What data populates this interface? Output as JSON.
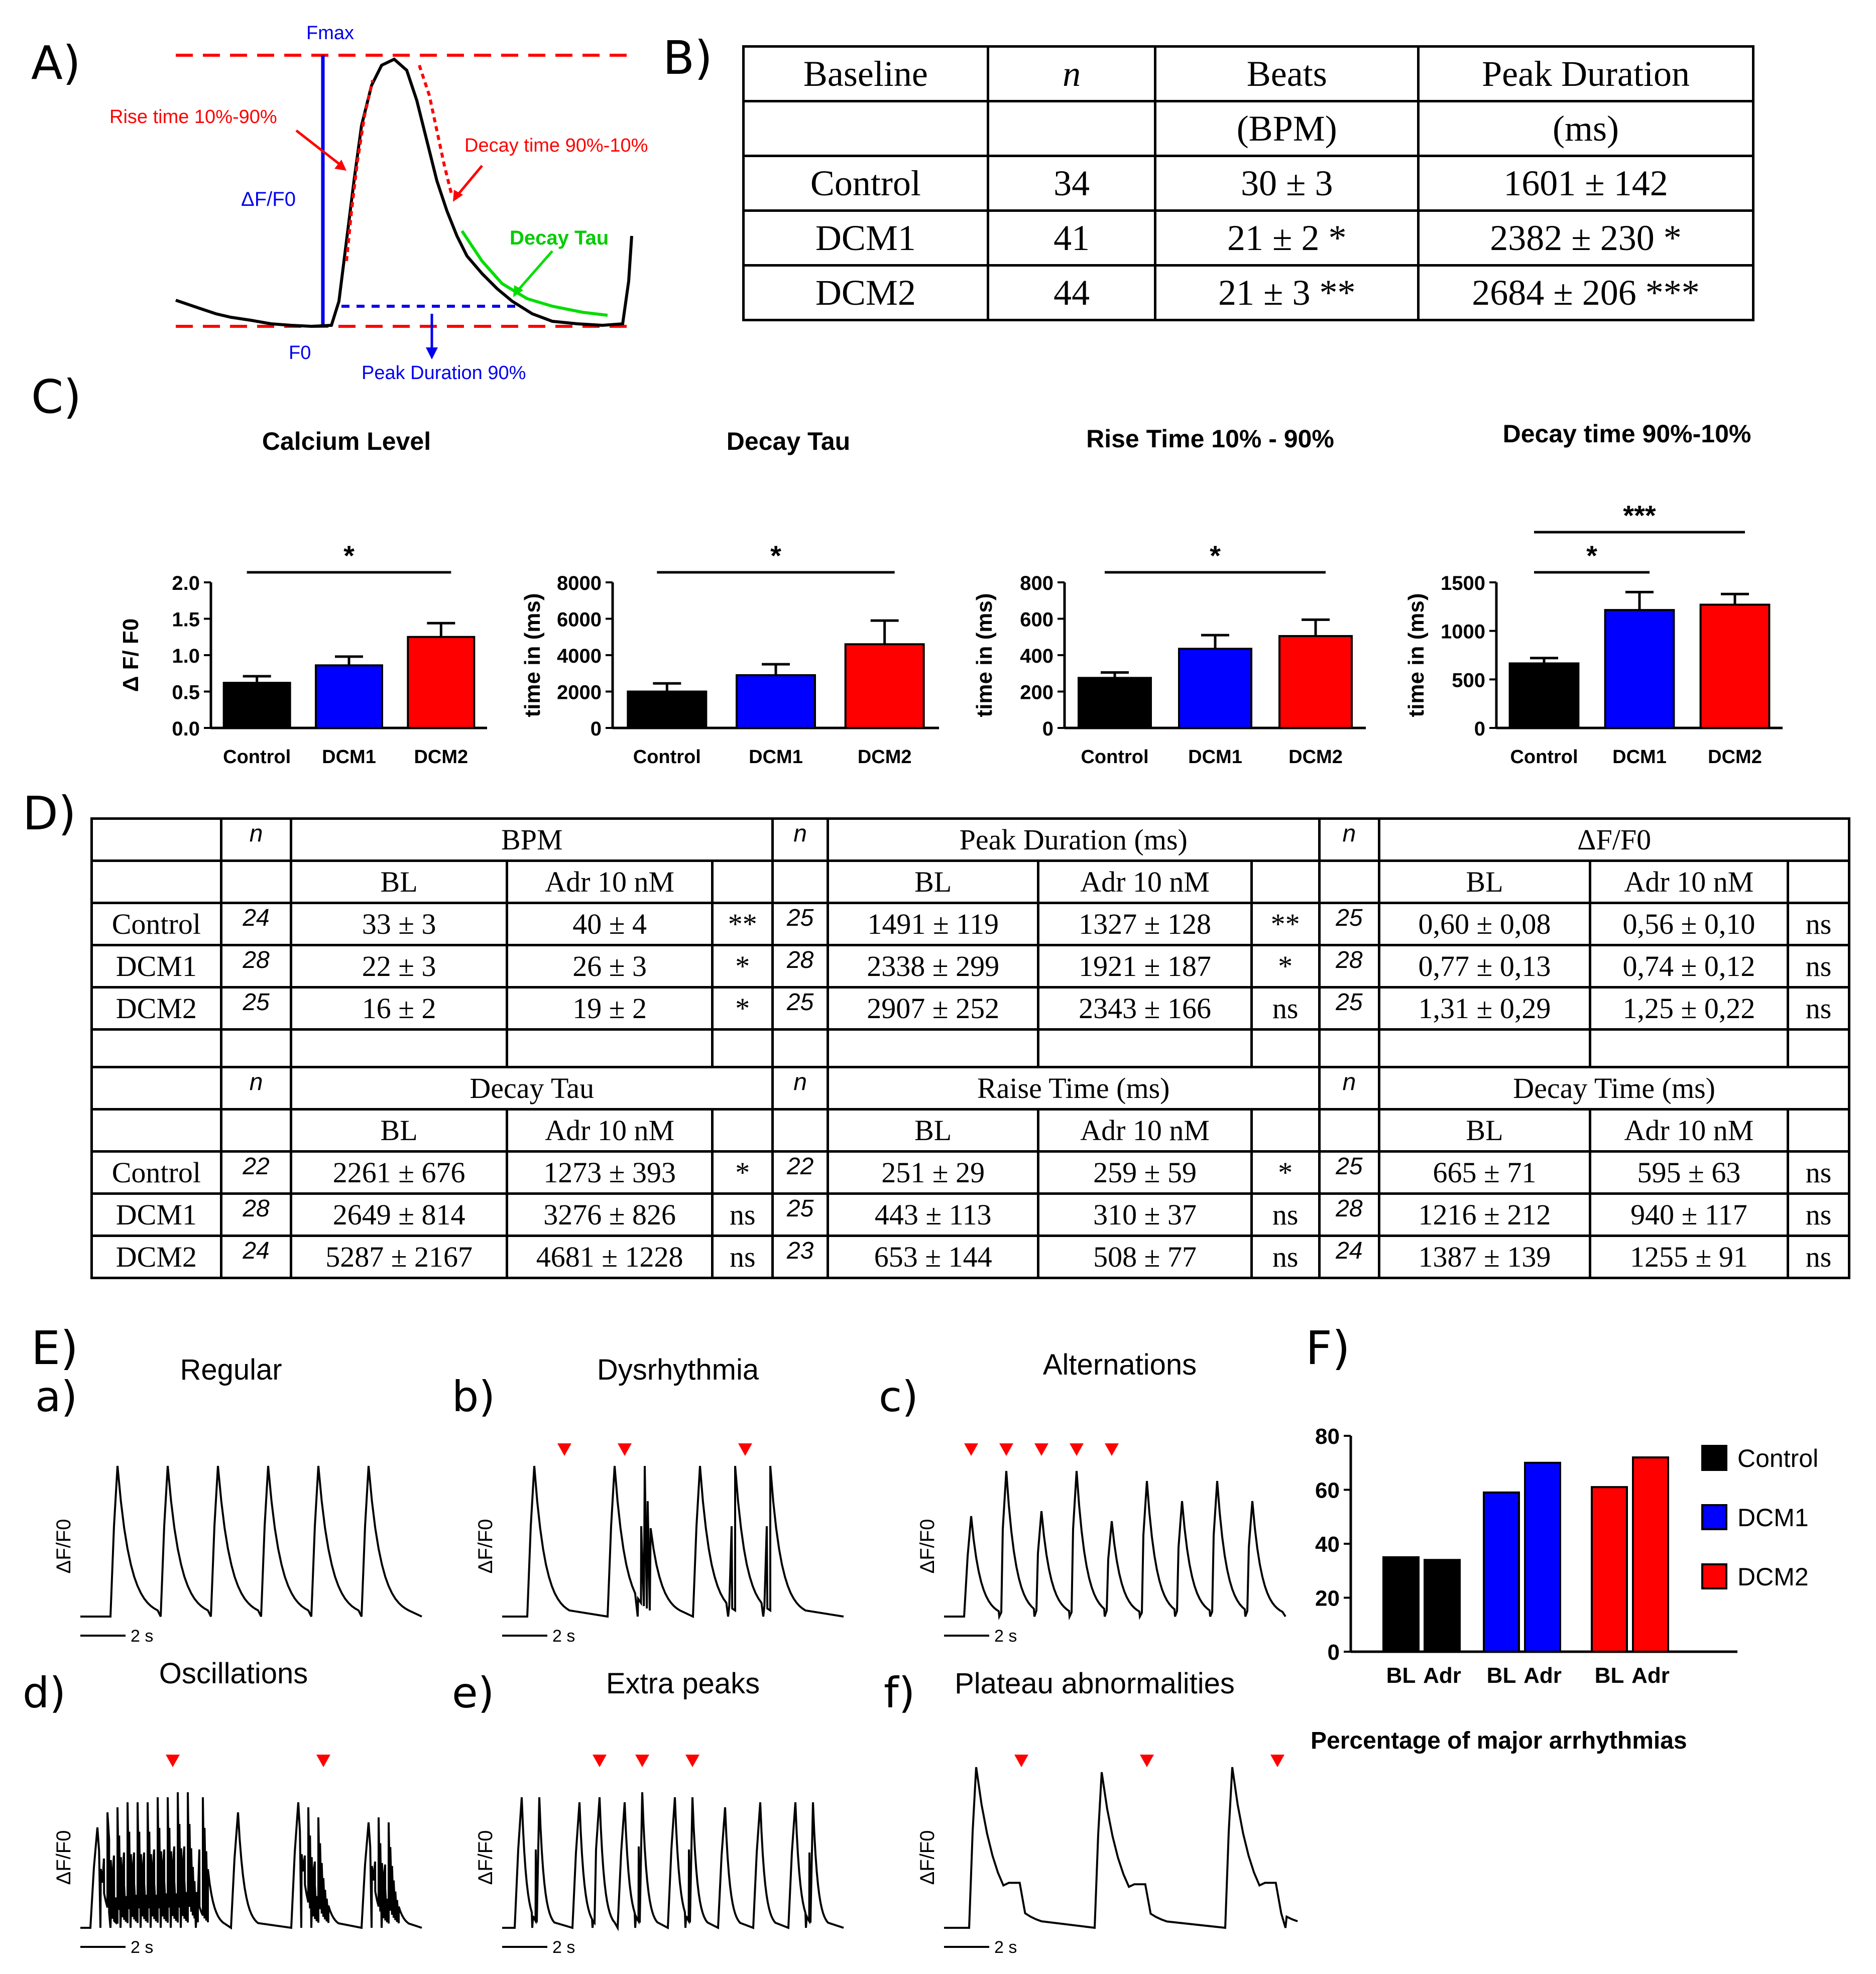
{
  "panels": {
    "A": "A)",
    "B": "B)",
    "C": "C)",
    "D": "D)",
    "E": "E)",
    "F": "F)"
  },
  "panelA": {
    "fmax": "Fmax",
    "df": "ΔF/F0",
    "f0": "F0",
    "rise": "Rise time 10%-90%",
    "decay_time": "Decay time 90%-10%",
    "decay_tau": "Decay Tau",
    "peak_duration": "Peak Duration 90%",
    "colors": {
      "red": "#ff0000",
      "blue": "#0000ee",
      "green": "#00dd00"
    }
  },
  "tableB": {
    "header1": [
      "Baseline",
      "n",
      "Beats",
      "Peak Duration"
    ],
    "header2": [
      "",
      "",
      "(BPM)",
      "(ms)"
    ],
    "rows": [
      [
        "Control",
        "34",
        "30 ± 3",
        "1601 ± 142"
      ],
      [
        "DCM1",
        "41",
        "21 ± 2  *",
        "2382 ± 230 *"
      ],
      [
        "DCM2",
        "44",
        "21 ± 3 **",
        "2684 ± 206 ***"
      ]
    ]
  },
  "chart_data": [
    {
      "type": "bar",
      "title": "Calcium  Level",
      "ylabel": "Δ F/  F0",
      "categories": [
        "Control",
        "DCM1",
        "DCM2"
      ],
      "values": [
        0.62,
        0.86,
        1.25
      ],
      "errors": [
        0.09,
        0.12,
        0.19
      ],
      "ylim": [
        0,
        2.0
      ],
      "yticks": [
        "0.0",
        "0.5",
        "1.0",
        "1.5",
        "2.0"
      ],
      "colors": [
        "#000000",
        "#0000ff",
        "#ff0000"
      ],
      "significance": [
        {
          "from": 0,
          "to": 2,
          "label": "*"
        }
      ]
    },
    {
      "type": "bar",
      "title": "Decay Tau",
      "ylabel": "time in (ms)",
      "categories": [
        "Control",
        "DCM1",
        "DCM2"
      ],
      "values": [
        2000,
        2900,
        4600
      ],
      "errors": [
        450,
        600,
        1300
      ],
      "ylim": [
        0,
        8000
      ],
      "yticks": [
        "0",
        "2000",
        "4000",
        "6000",
        "8000"
      ],
      "colors": [
        "#000000",
        "#0000ff",
        "#ff0000"
      ],
      "significance": [
        {
          "from": 0,
          "to": 2,
          "label": "*"
        }
      ]
    },
    {
      "type": "bar",
      "title": "Rise Time 10% - 90%",
      "ylabel": "time in (ms)",
      "categories": [
        "Control",
        "DCM1",
        "DCM2"
      ],
      "values": [
        275,
        435,
        505
      ],
      "errors": [
        30,
        75,
        90
      ],
      "ylim": [
        0,
        800
      ],
      "yticks": [
        "0",
        "200",
        "400",
        "600",
        "800"
      ],
      "colors": [
        "#000000",
        "#0000ff",
        "#ff0000"
      ],
      "significance": [
        {
          "from": 0,
          "to": 2,
          "label": "*"
        }
      ]
    },
    {
      "type": "bar",
      "title": "Decay time 90%-10%",
      "ylabel": "time in (ms)",
      "categories": [
        "Control",
        "DCM1",
        "DCM2"
      ],
      "values": [
        665,
        1215,
        1270
      ],
      "errors": [
        55,
        185,
        110
      ],
      "ylim": [
        0,
        1500
      ],
      "yticks": [
        "0",
        "500",
        "1000",
        "1500"
      ],
      "colors": [
        "#000000",
        "#0000ff",
        "#ff0000"
      ],
      "significance": [
        {
          "from": 0,
          "to": 1,
          "label": "*"
        },
        {
          "from": 0,
          "to": 2,
          "label": "***"
        }
      ]
    },
    {
      "type": "bar",
      "title": "Percentage of major arrhythmias",
      "categories": [
        "BL",
        "Adr",
        "BL",
        "Adr",
        "BL",
        "Adr"
      ],
      "groups": [
        "Control",
        "DCM1",
        "DCM2"
      ],
      "values": [
        35,
        34,
        59,
        70,
        61,
        72
      ],
      "ylim": [
        0,
        80
      ],
      "yticks": [
        "0",
        "20",
        "40",
        "60",
        "80"
      ],
      "colors": [
        "#000000",
        "#0000ff",
        "#ff0000"
      ],
      "legend": [
        "Control",
        "DCM1",
        "DCM2"
      ]
    }
  ],
  "tableD": {
    "top": {
      "head1": [
        "",
        "n",
        "BPM",
        "n",
        "Peak Duration (ms)",
        "n",
        "ΔF/F0"
      ],
      "head2": [
        "BL",
        "Adr 10 nM",
        "BL",
        "Adr 10 nM",
        "BL",
        "Adr 10 nM"
      ],
      "rows": [
        [
          "Control",
          "24",
          "33  ± 3",
          "40 ± 4",
          "**",
          "25",
          "1491  ± 119",
          "1327 ± 128",
          "**",
          "25",
          "0,60  ± 0,08",
          "0,56 ± 0,10",
          "ns"
        ],
        [
          "DCM1",
          "28",
          "22 ± 3",
          "26 ± 3",
          "*",
          "28",
          "2338 ± 299",
          "1921 ± 187",
          "*",
          "28",
          "0,77 ± 0,13",
          "0,74 ± 0,12",
          "ns"
        ],
        [
          "DCM2",
          "25",
          "16 ± 2",
          "19 ± 2",
          "*",
          "25",
          "2907 ± 252",
          "2343 ± 166",
          "ns",
          "25",
          "1,31 ± 0,29",
          "1,25 ± 0,22",
          "ns"
        ]
      ]
    },
    "bottom": {
      "head1": [
        "",
        "n",
        "Decay Tau",
        "n",
        "Raise Time (ms)",
        "n",
        "Decay Time (ms)"
      ],
      "head2": [
        "BL",
        "Adr 10 nM",
        "BL",
        "Adr 10 nM",
        "BL",
        "Adr 10 nM"
      ],
      "rows": [
        [
          "Control",
          "22",
          "2261 ±  676",
          "1273 ± 393",
          "*",
          "22",
          "251 ±   29",
          "259 ± 59",
          "*",
          "25",
          "665 ±   71",
          "595   ±   63",
          "ns"
        ],
        [
          "DCM1",
          "28",
          "2649 ±  814",
          "3276 ± 826",
          "ns",
          "25",
          "443 ±  113",
          "310 ± 37",
          "ns",
          "28",
          "1216 ±  212",
          "940   ± 117",
          "ns"
        ],
        [
          "DCM2",
          "24",
          "5287 ± 2167",
          "4681 ± 1228",
          "ns",
          "23",
          "653 ±  144",
          "508 ±  77",
          "ns",
          "24",
          "1387 ±  139",
          "1255 ± 91",
          "ns"
        ]
      ]
    }
  },
  "panelE": {
    "traces": [
      {
        "letter": "a)",
        "title": "Regular"
      },
      {
        "letter": "b)",
        "title": "Dysrhythmia"
      },
      {
        "letter": "c)",
        "title": "Alternations"
      },
      {
        "letter": "d)",
        "title": "Oscillations"
      },
      {
        "letter": "e)",
        "title": "Extra peaks"
      },
      {
        "letter": "f)",
        "title": "Plateau abnormalities"
      }
    ],
    "ylabel": "ΔF/F0",
    "scale": "2 s"
  },
  "panelF": {
    "xlabels": [
      "BL",
      "Adr",
      "BL",
      "Adr",
      "BL",
      "Adr"
    ],
    "caption": "Percentage of major arrhythmias"
  }
}
